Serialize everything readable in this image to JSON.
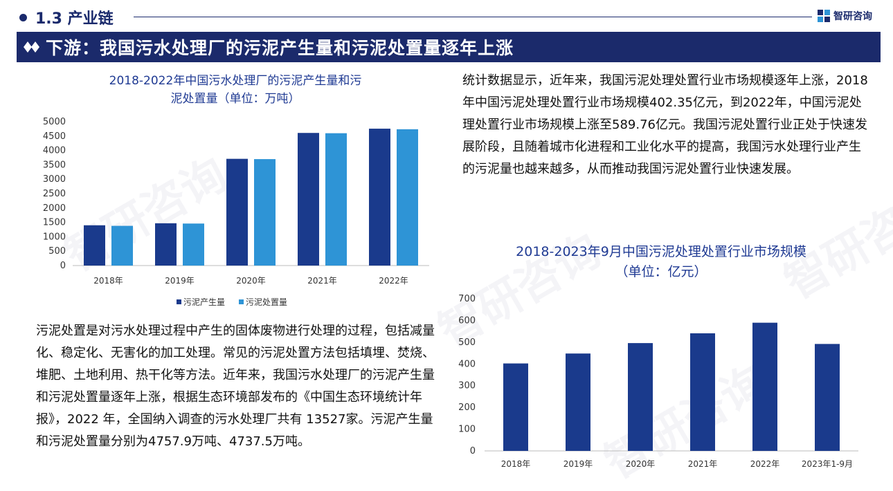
{
  "header": {
    "section_title": "1.3 产业链",
    "logo_text": "智研咨询",
    "banner_title": "下游：我国污水处理厂的污泥产生量和污泥处置量逐年上涨"
  },
  "watermark_text": "智研咨询",
  "colors": {
    "navy": "#1b2a6b",
    "dark_bar": "#1a3a8c",
    "light_bar": "#2e94d6",
    "title_blue": "#1f3a93"
  },
  "left_chart": {
    "title_line1": "2018-2022年中国污水处理厂的污泥产生量和污",
    "title_line2": "泥处置量（单位：万吨）"
  },
  "right_chart": {
    "title_line1": "2018-2023年9月中国污泥处理处置行业市场规模",
    "title_line2": "（单位：亿元）"
  },
  "right_text": "统计数据显示，近年来，我国污泥处理处置行业市场规模逐年上涨，2018年中国污泥处理处置行业市场规模402.35亿元，到2022年，中国污泥处理处置行业市场规模上涨至589.76亿元。我国污泥处置行业正处于快速发展阶段，且随着城市化进程和工业化水平的提高，我国污水处理行业产生的污泥量也越来越多，从而推动我国污泥处置行业快速发展。",
  "left_text": "污泥处置是对污水处理过程中产生的固体废物进行处理的过程，包括减量化、稳定化、无害化的加工处理。常见的污泥处置方法包括填埋、焚烧、堆肥、土地利用、热干化等方法。近年来，我国污水处理厂的污泥产生量和污泥处置量逐年上涨，根据生态环境部发布的《中国生态环境统计年报》，2022 年，全国纳入调查的污水处理厂共有 13527家。污泥产生量和污泥处置量分别为4757.9万吨、4737.5万吨。",
  "chart_data": [
    {
      "type": "bar",
      "title": "2018-2022年中国污水处理厂的污泥产生量和污泥处置量（单位：万吨）",
      "categories": [
        "2018年",
        "2019年",
        "2020年",
        "2021年",
        "2022年"
      ],
      "series": [
        {
          "name": "污泥产生量",
          "values": [
            1400,
            1470,
            3710,
            4610,
            4757.9
          ],
          "color": "#1a3a8c"
        },
        {
          "name": "污泥处置量",
          "values": [
            1380,
            1460,
            3700,
            4600,
            4737.5
          ],
          "color": "#2e94d6"
        }
      ],
      "ylim": [
        0,
        5000
      ],
      "yticks": [
        "0",
        "500",
        "1000",
        "1500",
        "2000",
        "2500",
        "3000",
        "3500",
        "4000",
        "4500",
        "5000"
      ],
      "legend": "bottom",
      "grid": false
    },
    {
      "type": "bar",
      "title": "2018-2023年9月中国污泥处理处置行业市场规模（单位：亿元）",
      "categories": [
        "2018年",
        "2019年",
        "2020年",
        "2021年",
        "2022年",
        "2023年1-9月"
      ],
      "values": [
        402.35,
        448,
        496,
        541,
        589.76,
        492
      ],
      "ylim": [
        0,
        700
      ],
      "yticks": [
        "0",
        "100",
        "200",
        "300",
        "400",
        "500",
        "600",
        "700"
      ],
      "color": "#1a3a8c",
      "grid": false
    }
  ]
}
